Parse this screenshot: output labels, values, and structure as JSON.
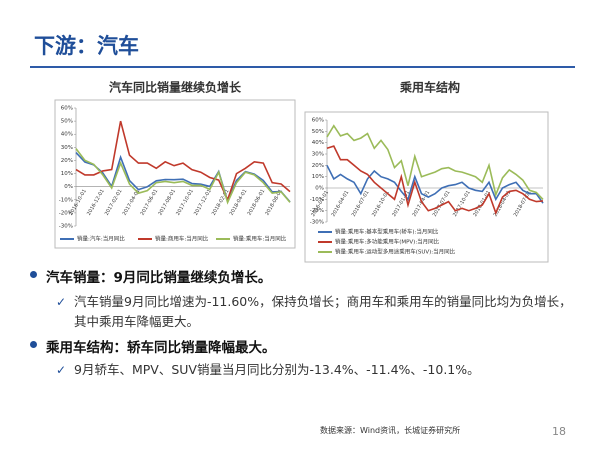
{
  "header": {
    "title": "下游：汽车"
  },
  "chart_data": [
    {
      "type": "line",
      "title": "汽车同比销量继续负增长",
      "categories": [
        null,
        "2016-10-01",
        null,
        "2016-12-01",
        null,
        "2017-02-01",
        null,
        "2017-04-01",
        null,
        "2017-06-01",
        null,
        "2017-08-01",
        null,
        "2017-10-01",
        null,
        "2017-12-01",
        null,
        "2018-02-01",
        null,
        "2018-04-01",
        null,
        "2018-06-01",
        null,
        "2018-08-01",
        null
      ],
      "series": [
        {
          "name": "销量:汽车:当月同比",
          "color": "#3f6fb5",
          "values": [
            26,
            18.8,
            16.6,
            10.5,
            0.2,
            22.5,
            4.7,
            -2.2,
            -0.1,
            4.5,
            5.5,
            5.3,
            5.7,
            2.4,
            1.9,
            0.2,
            11.6,
            -11.1,
            4.7,
            11.5,
            9.6,
            4.8,
            -4,
            -3.8,
            -11.6
          ]
        },
        {
          "name": "销量:商用车:当月同比",
          "color": "#c0392b",
          "values": [
            13,
            9,
            9,
            12,
            13,
            50,
            24,
            18,
            18,
            14,
            19,
            16,
            18,
            13,
            11,
            7,
            5,
            -10,
            10,
            14,
            19,
            18,
            3,
            2,
            -3.8
          ]
        },
        {
          "name": "销量:乘用车:当月同比",
          "color": "#9bbb59",
          "values": [
            29,
            20,
            17,
            9,
            -1,
            18,
            2,
            -5,
            -3,
            3,
            4,
            3,
            4,
            1,
            1,
            -2,
            11,
            -12,
            3,
            11,
            9,
            3,
            -5,
            -4,
            -12
          ]
        }
      ],
      "ylim": [
        -30,
        60
      ],
      "yticks": [
        {
          "value": -30,
          "label": "-30%"
        },
        {
          "value": -20,
          "label": "-20%"
        },
        {
          "value": -10,
          "label": "-10%"
        },
        {
          "value": 0,
          "label": "0%"
        },
        {
          "value": 10,
          "label": "10%"
        },
        {
          "value": 20,
          "label": "20%"
        },
        {
          "value": 30,
          "label": "30%"
        },
        {
          "value": 40,
          "label": "40%"
        },
        {
          "value": 50,
          "label": "50%"
        },
        {
          "value": 60,
          "label": "60%"
        }
      ],
      "grid": false,
      "legend": "bottom"
    },
    {
      "type": "line",
      "title": "乘用车结构",
      "categories": [
        "2016-01-01",
        null,
        null,
        "2016-04-01",
        null,
        null,
        "2016-07-01",
        null,
        null,
        "2016-10-01",
        null,
        null,
        "2017-01-01",
        null,
        null,
        "2017-04-01",
        null,
        null,
        "2017-07-01",
        null,
        null,
        "2017-10-01",
        null,
        null,
        "2018-01-01",
        null,
        null,
        "2018-04-01",
        null,
        null,
        "2018-07-01",
        null,
        null
      ],
      "series": [
        {
          "name": "销量:乘用车:基本型乘用车(轿车):当月同比",
          "color": "#3f6fb5",
          "values": [
            20,
            8,
            12,
            8,
            5,
            -5,
            8,
            15,
            10,
            8,
            5,
            -3,
            -10,
            10,
            -5,
            -8,
            -5,
            0,
            2,
            3,
            5,
            0,
            -2,
            -3,
            5,
            -10,
            0,
            3,
            5,
            -2,
            -5,
            -5,
            -13.4
          ]
        },
        {
          "name": "销量:乘用车:多功能乘用车(MPV):当月同比",
          "color": "#c0392b",
          "values": [
            35,
            37,
            25,
            25,
            20,
            15,
            12,
            5,
            0,
            -5,
            -10,
            10,
            -15,
            5,
            -12,
            -20,
            -18,
            -15,
            -12,
            -20,
            -18,
            -20,
            -18,
            -15,
            -5,
            -22,
            -8,
            -3,
            -2,
            -5,
            -10,
            -12,
            -11.4
          ]
        },
        {
          "name": "销量:乘用车:运动型多用途乘用车(SUV):当月同比",
          "color": "#9bbb59",
          "values": [
            45,
            55,
            46,
            48,
            42,
            44,
            48,
            35,
            42,
            34,
            18,
            24,
            2,
            28,
            10,
            12,
            14,
            17,
            18,
            15,
            14,
            12,
            10,
            5,
            20,
            -6,
            9,
            16,
            12,
            7,
            -2,
            -4,
            -10.1
          ]
        }
      ],
      "ylim": [
        -30,
        60
      ],
      "yticks": [
        {
          "value": -30,
          "label": "-30%"
        },
        {
          "value": -20,
          "label": "-20%"
        },
        {
          "value": -10,
          "label": "-10%"
        },
        {
          "value": 0,
          "label": "0%"
        },
        {
          "value": 10,
          "label": "10%"
        },
        {
          "value": 20,
          "label": "20%"
        },
        {
          "value": 30,
          "label": "30%"
        },
        {
          "value": 40,
          "label": "40%"
        },
        {
          "value": 50,
          "label": "50%"
        },
        {
          "value": 60,
          "label": "60%"
        }
      ],
      "grid": false,
      "legend": "bottom"
    }
  ],
  "bullets": [
    {
      "title": "汽车销量：9月同比销量继续负增长。",
      "items": [
        "汽车销量9月同比增速为-11.60%，保持负增长；商用车和乘用车的销量同比均为负增长，其中乘用车降幅更大。"
      ]
    },
    {
      "title": "乘用车结构：轿车同比销量降幅最大。",
      "items": [
        "9月轿车、MPV、SUV销量当月同比分别为-13.4%、-11.4%、-10.1%。"
      ]
    }
  ],
  "footer": {
    "source": "数据来源：Wind资讯，长城证券研究所",
    "page": "18"
  }
}
